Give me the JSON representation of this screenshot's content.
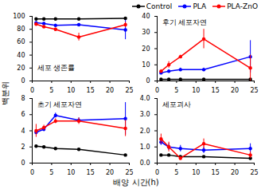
{
  "y_label": "백분위",
  "x_label": "배양 시간(h)",
  "legend": "top-right",
  "chart_data": [
    {
      "type": "line",
      "title": "세포 생존률",
      "x": [
        1,
        3,
        6,
        12,
        24
      ],
      "xlim": [
        0,
        25
      ],
      "xticks": [
        0,
        5,
        10,
        15,
        20,
        25
      ],
      "ylim": [
        0,
        100
      ],
      "yticks": [
        0,
        20,
        40,
        60,
        80,
        100
      ],
      "series": [
        {
          "name": "Control",
          "color": "#000000",
          "marker": "circle",
          "values": [
            96,
            96,
            96,
            96,
            97
          ],
          "errors": [
            0.5,
            0.5,
            0.5,
            0.5,
            0.5
          ]
        },
        {
          "name": "PLA",
          "color": "#0000ff",
          "marker": "circle",
          "values": [
            90,
            89,
            86,
            87,
            79
          ],
          "errors": [
            2,
            2,
            2,
            2,
            15
          ]
        },
        {
          "name": "PLA-ZnO",
          "color": "#ff0000",
          "marker": "circle",
          "values": [
            88,
            84,
            80,
            68,
            87
          ],
          "errors": [
            2,
            2,
            2,
            6,
            4
          ]
        }
      ]
    },
    {
      "type": "line",
      "title": "후기 세포자연",
      "x": [
        1,
        3,
        6,
        12,
        24
      ],
      "xlim": [
        0,
        25
      ],
      "xticks": [
        0,
        5,
        10,
        15,
        20,
        25
      ],
      "ylim": [
        0,
        40
      ],
      "yticks": [
        0,
        10,
        20,
        30,
        40
      ],
      "series": [
        {
          "name": "Control",
          "color": "#000000",
          "marker": "circle",
          "values": [
            1,
            1,
            1,
            1,
            1
          ],
          "errors": [
            0.3,
            0.3,
            0.3,
            0.3,
            0.3
          ]
        },
        {
          "name": "PLA",
          "color": "#0000ff",
          "marker": "circle",
          "values": [
            5,
            6,
            7,
            7,
            15
          ],
          "errors": [
            1,
            1,
            1,
            1,
            10
          ]
        },
        {
          "name": "PLA-ZnO",
          "color": "#ff0000",
          "marker": "circle",
          "values": [
            6,
            10,
            15,
            26,
            8
          ],
          "errors": [
            1,
            2,
            1,
            6,
            8
          ]
        }
      ]
    },
    {
      "type": "line",
      "title": "초기 세포자연",
      "x": [
        1,
        3,
        6,
        12,
        24
      ],
      "xlim": [
        0,
        25
      ],
      "xticks": [
        0,
        5,
        10,
        15,
        20,
        25
      ],
      "ylim": [
        0,
        8
      ],
      "yticks": [
        0,
        2,
        4,
        6,
        8
      ],
      "series": [
        {
          "name": "Control",
          "color": "#000000",
          "marker": "circle",
          "values": [
            2.1,
            2.0,
            1.8,
            1.7,
            1.0
          ],
          "errors": [
            0.1,
            0.1,
            0.1,
            0.1,
            0.1
          ]
        },
        {
          "name": "PLA",
          "color": "#0000ff",
          "marker": "circle",
          "values": [
            3.8,
            4.2,
            5.9,
            5.3,
            5.5
          ],
          "errors": [
            0.3,
            0.3,
            0.3,
            0.3,
            2
          ]
        },
        {
          "name": "PLA-ZnO",
          "color": "#ff0000",
          "marker": "circle",
          "values": [
            4.0,
            4.4,
            5.2,
            5.2,
            4.3
          ],
          "errors": [
            0.8,
            0.3,
            0.3,
            0.4,
            1
          ]
        }
      ]
    },
    {
      "type": "line",
      "title": "세포괴사",
      "x": [
        1,
        3,
        6,
        12,
        24
      ],
      "xlim": [
        0,
        25
      ],
      "xticks": [
        0,
        5,
        10,
        15,
        20,
        25
      ],
      "ylim": [
        0,
        4
      ],
      "yticks": [
        0,
        1,
        2,
        3,
        4
      ],
      "series": [
        {
          "name": "Control",
          "color": "#000000",
          "marker": "circle",
          "values": [
            0.5,
            0.5,
            0.4,
            0.4,
            0.3
          ],
          "errors": [
            0.05,
            0.05,
            0.05,
            0.05,
            0.05
          ]
        },
        {
          "name": "PLA",
          "color": "#0000ff",
          "marker": "circle",
          "values": [
            1.3,
            1.0,
            0.9,
            0.8,
            0.9
          ],
          "errors": [
            0.2,
            0.2,
            0.2,
            0.2,
            0.3
          ]
        },
        {
          "name": "PLA-ZnO",
          "color": "#ff0000",
          "marker": "circle",
          "values": [
            1.5,
            1.0,
            0.3,
            1.2,
            0.5
          ],
          "errors": [
            0.3,
            0.3,
            0.1,
            0.3,
            0.2
          ]
        }
      ]
    }
  ]
}
